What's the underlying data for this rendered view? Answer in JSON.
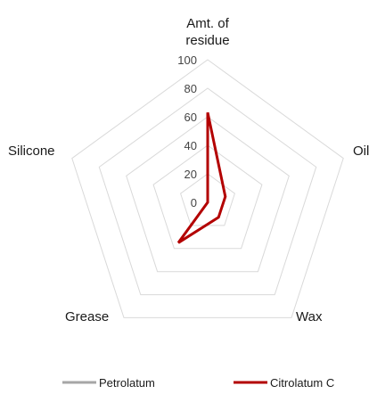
{
  "chart_data": {
    "type": "radar",
    "categories": [
      "Amt. of\nresidue",
      "Oil",
      "Wax",
      "Grease",
      "Silicone"
    ],
    "ylim": [
      0,
      100
    ],
    "ticks": [
      0,
      20,
      40,
      60,
      80,
      100
    ],
    "grid": true,
    "legend_position": "bottom",
    "series": [
      {
        "name": "Petrolatum",
        "color": "#a6a6a6",
        "values": [
          0,
          0,
          0,
          0,
          0
        ]
      },
      {
        "name": "Citrolatum C",
        "color": "#b30000",
        "values": [
          63,
          13,
          13,
          35,
          0
        ]
      }
    ]
  }
}
